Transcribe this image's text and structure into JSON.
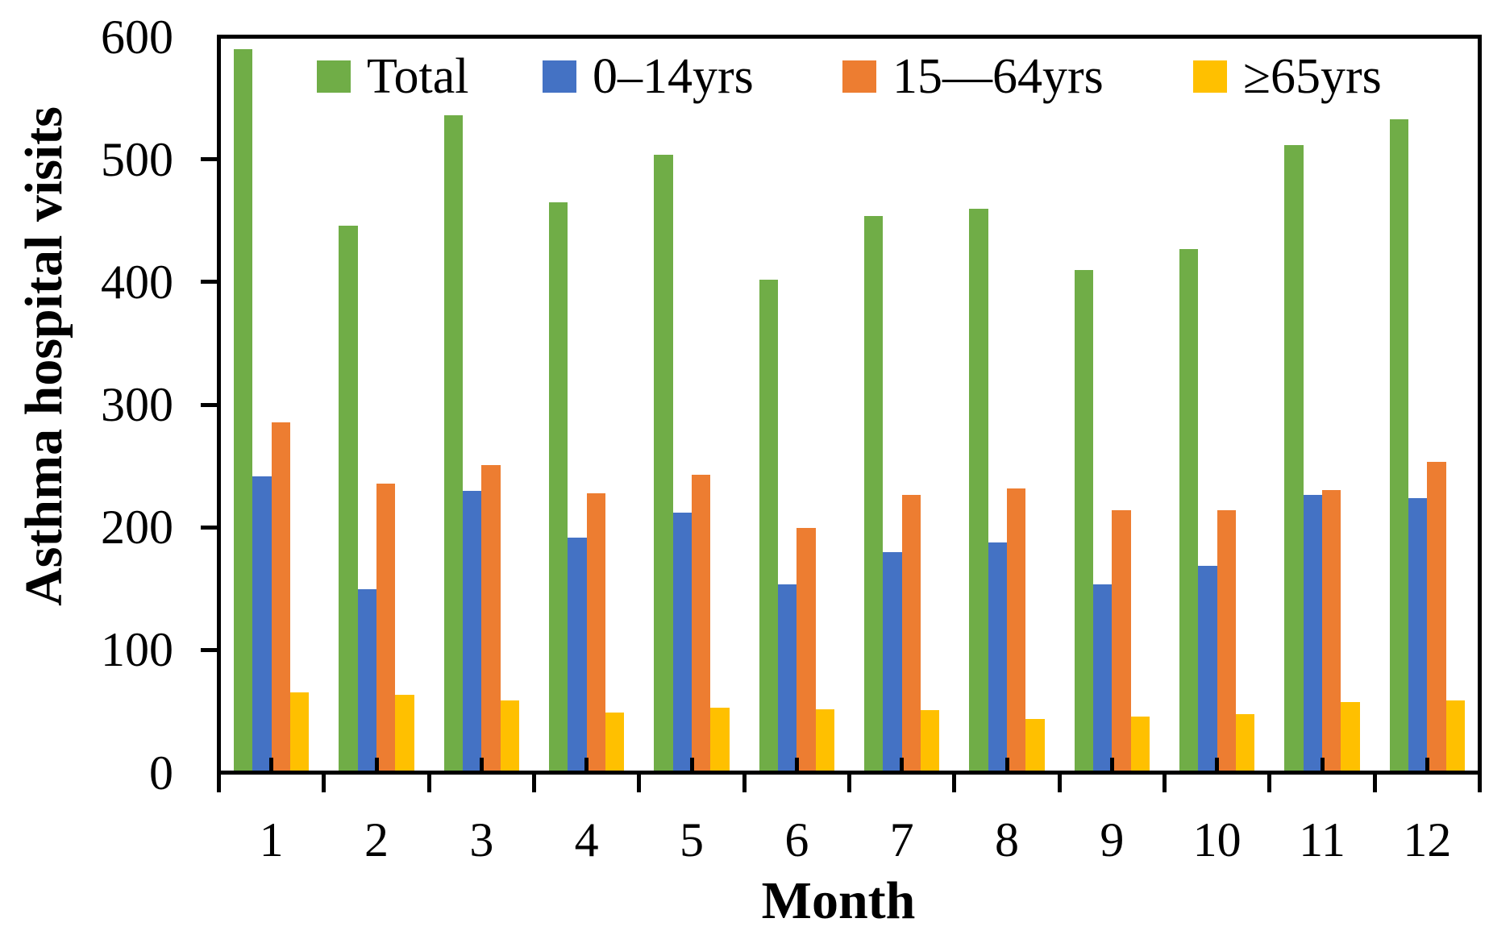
{
  "y_axis": {
    "title": "Asthma hospital visits",
    "tick_labels": [
      "0",
      "100",
      "200",
      "300",
      "400",
      "500",
      "600"
    ],
    "min": 0,
    "max": 600,
    "step": 100
  },
  "x_axis": {
    "title": "Month",
    "tick_labels": [
      "1",
      "2",
      "3",
      "4",
      "5",
      "6",
      "7",
      "8",
      "9",
      "10",
      "11",
      "12"
    ]
  },
  "legend": {
    "position": "top-inside",
    "items": [
      {
        "label": "Total",
        "color": "#70AD47"
      },
      {
        "label": "0–14yrs",
        "color": "#4472C4"
      },
      {
        "label": "15—64yrs",
        "color": "#ED7D31"
      },
      {
        "label": "≥65yrs",
        "color": "#FFC000"
      }
    ]
  },
  "chart_data": {
    "type": "bar",
    "title": "",
    "xlabel": "Month",
    "ylabel": "Asthma hospital visits",
    "ylim": [
      0,
      600
    ],
    "grid": false,
    "legend_position": "top-inside",
    "categories": [
      "1",
      "2",
      "3",
      "4",
      "5",
      "6",
      "7",
      "8",
      "9",
      "10",
      "11",
      "12"
    ],
    "series": [
      {
        "name": "Total",
        "color": "#70AD47",
        "values": [
          588,
          444,
          534,
          463,
          502,
          400,
          452,
          458,
          408,
          425,
          510,
          531
        ]
      },
      {
        "name": "0–14yrs",
        "color": "#4472C4",
        "values": [
          240,
          148,
          228,
          190,
          210,
          152,
          178,
          186,
          152,
          167,
          225,
          222
        ]
      },
      {
        "name": "15—64yrs",
        "color": "#ED7D31",
        "values": [
          284,
          234,
          249,
          226,
          241,
          198,
          225,
          230,
          212,
          212,
          229,
          252
        ]
      },
      {
        "name": "≥65yrs",
        "color": "#FFC000",
        "values": [
          64,
          62,
          57,
          47,
          51,
          50,
          49,
          42,
          44,
          46,
          56,
          57
        ]
      }
    ]
  }
}
